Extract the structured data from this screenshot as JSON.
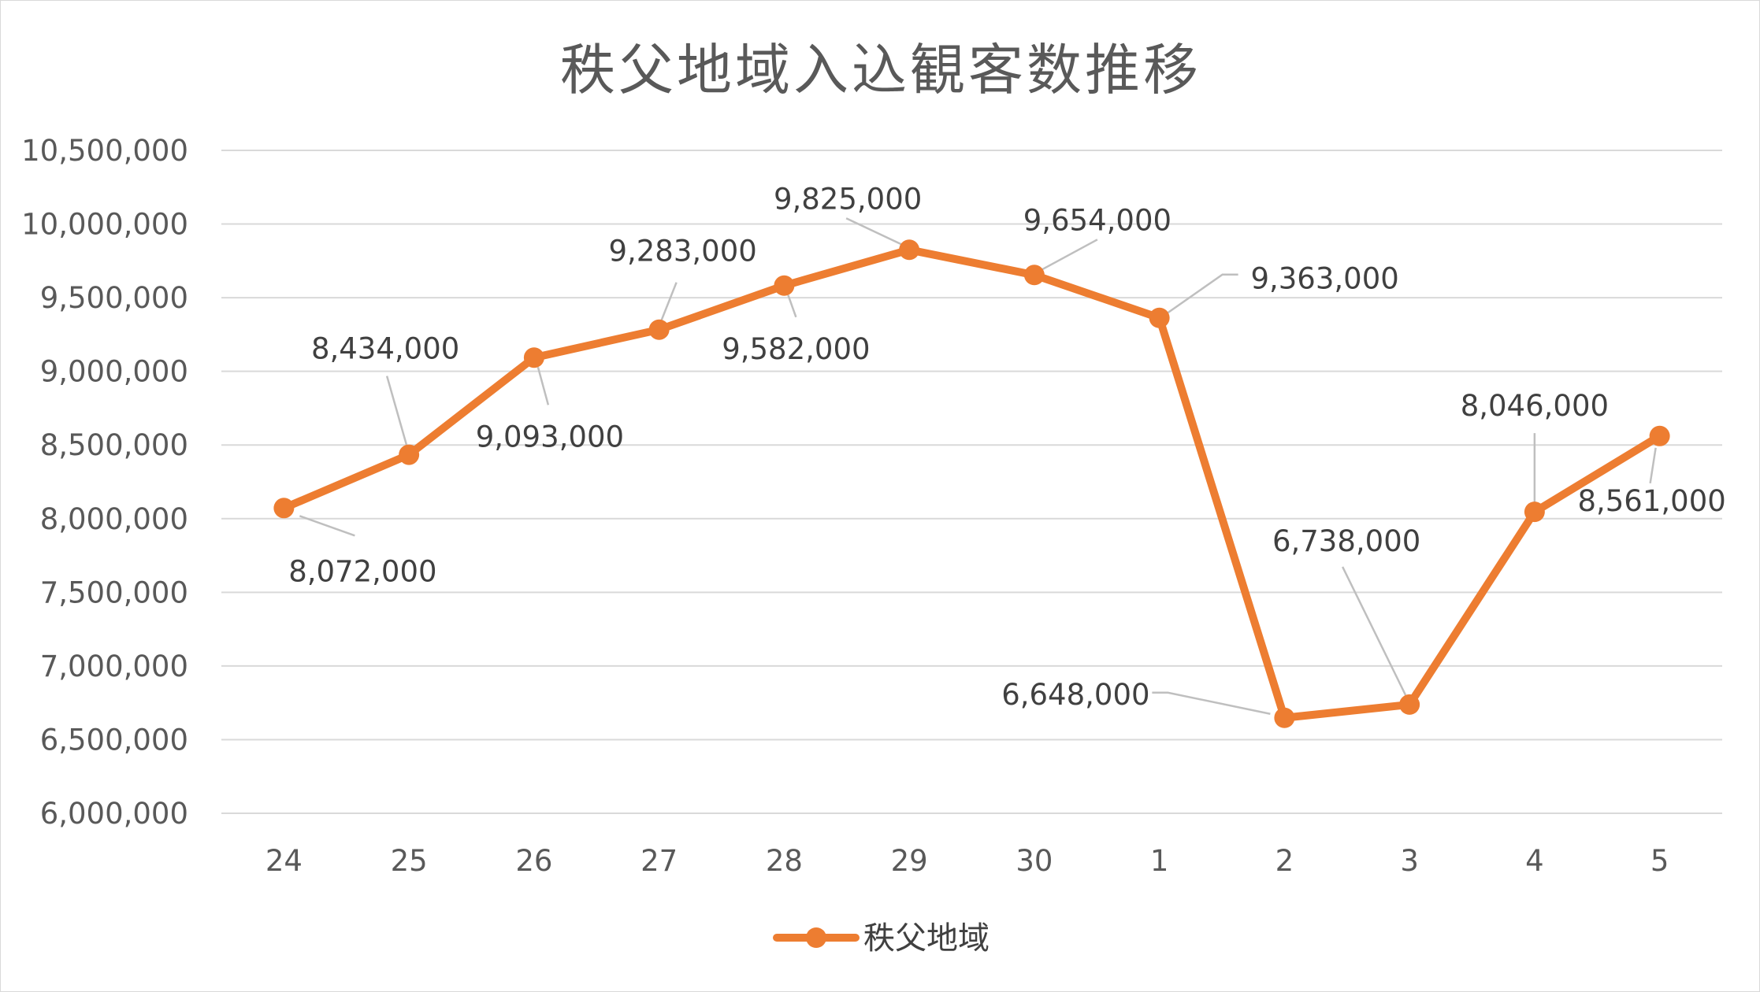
{
  "chart_data": {
    "type": "line",
    "title": "秩父地域入込観客数推移",
    "categories": [
      "24",
      "25",
      "26",
      "27",
      "28",
      "29",
      "30",
      "1",
      "2",
      "3",
      "4",
      "5"
    ],
    "series": [
      {
        "name": "秩父地域",
        "values": [
          8072000,
          8434000,
          9093000,
          9283000,
          9582000,
          9825000,
          9654000,
          9363000,
          6648000,
          6738000,
          8046000,
          8561000
        ],
        "data_labels": [
          "8,072,000",
          "8,434,000",
          "9,093,000",
          "9,283,000",
          "9,582,000",
          "9,825,000",
          "9,654,000",
          "9,363,000",
          "6,648,000",
          "6,738,000",
          "8,046,000",
          "8,561,000"
        ]
      }
    ],
    "yticks": [
      "6,000,000",
      "6,500,000",
      "7,000,000",
      "7,500,000",
      "8,000,000",
      "8,500,000",
      "9,000,000",
      "9,500,000",
      "10,000,000",
      "10,500,000"
    ],
    "ylim": [
      6000000,
      10500000
    ],
    "xlabel": "",
    "ylabel": "",
    "grid": true,
    "legend_position": "bottom",
    "colors": {
      "series": "#ED7D31",
      "grid": "#D9D9D9",
      "text": "#595959",
      "leader": "#BFBFBF"
    }
  }
}
